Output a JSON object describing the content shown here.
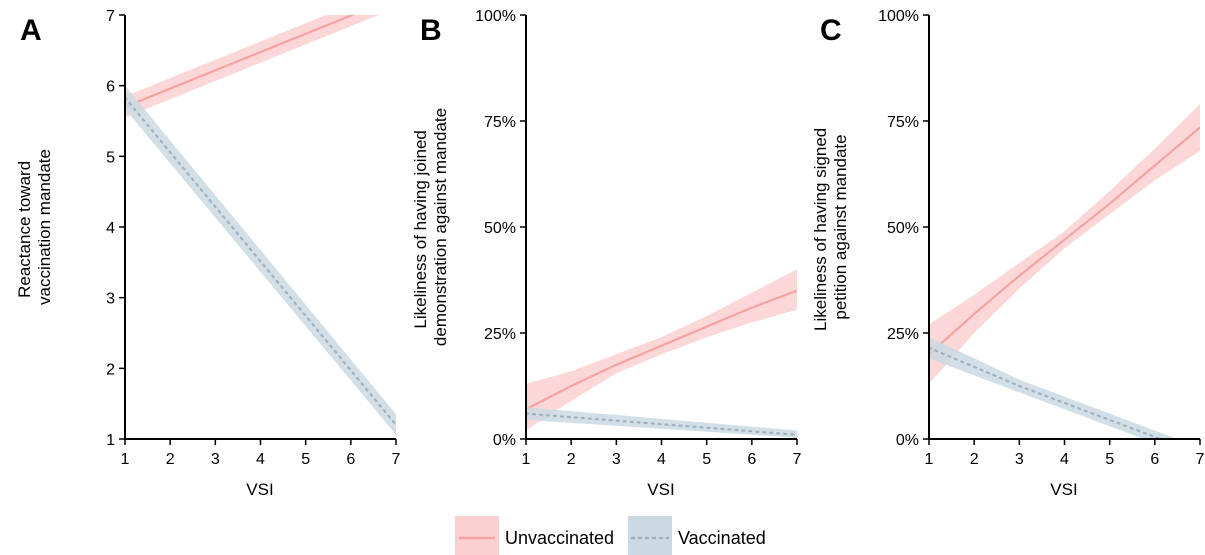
{
  "colors": {
    "unvaccinated_line": "#f4a3a3",
    "unvaccinated_band": "#fbd0d0",
    "vaccinated_line": "#9fb1bf",
    "vaccinated_band": "#cbd9e2",
    "axis": "#000000"
  },
  "legend": {
    "placement": "bottom-center",
    "items": [
      {
        "key": "unvaccinated",
        "label": "Unvaccinated",
        "line_style": "solid"
      },
      {
        "key": "vaccinated",
        "label": "Vaccinated",
        "line_style": "dotted"
      }
    ]
  },
  "chart_data": [
    {
      "panel": "A",
      "type": "line",
      "xlabel": "VSI",
      "ylabel": [
        "Reactance toward",
        "vaccination mandate"
      ],
      "xlim": [
        1,
        7
      ],
      "ylim": [
        1,
        7
      ],
      "x_ticks": [
        1,
        2,
        3,
        4,
        5,
        6,
        7
      ],
      "y_ticks": [
        {
          "value": 1,
          "label": "1"
        },
        {
          "value": 2,
          "label": "2"
        },
        {
          "value": 3,
          "label": "3"
        },
        {
          "value": 4,
          "label": "4"
        },
        {
          "value": 5,
          "label": "5"
        },
        {
          "value": 6,
          "label": "6"
        },
        {
          "value": 7,
          "label": "7"
        }
      ],
      "series": [
        {
          "name": "Unvaccinated",
          "key": "unvaccinated",
          "x": [
            1,
            7
          ],
          "y": [
            5.7,
            7.25
          ],
          "lower": [
            5.55,
            7.1
          ],
          "upper": [
            5.85,
            7.4
          ]
        },
        {
          "name": "Vaccinated",
          "key": "vaccinated",
          "x": [
            1,
            7
          ],
          "y": [
            5.83,
            1.2
          ],
          "lower": [
            5.67,
            1.06
          ],
          "upper": [
            6.0,
            1.35
          ]
        }
      ]
    },
    {
      "panel": "B",
      "type": "line",
      "xlabel": "VSI",
      "ylabel": [
        "Likeliness of having joined",
        "demonstration against mandate"
      ],
      "xlim": [
        1,
        7
      ],
      "ylim": [
        0,
        100
      ],
      "x_ticks": [
        1,
        2,
        3,
        4,
        5,
        6,
        7
      ],
      "y_ticks": [
        {
          "value": 0,
          "label": "0%"
        },
        {
          "value": 25,
          "label": "25%"
        },
        {
          "value": 50,
          "label": "50%"
        },
        {
          "value": 75,
          "label": "75%"
        },
        {
          "value": 100,
          "label": "100%"
        }
      ],
      "series": [
        {
          "name": "Unvaccinated",
          "key": "unvaccinated",
          "x": [
            1,
            2,
            3,
            4,
            5,
            6,
            7
          ],
          "y": [
            7,
            12.5,
            17.5,
            22,
            26.5,
            31,
            35
          ],
          "lower": [
            2,
            9,
            15.5,
            20,
            24,
            27.5,
            30.5
          ],
          "upper": [
            13,
            16,
            20,
            24,
            29,
            34.5,
            40
          ]
        },
        {
          "name": "Vaccinated",
          "key": "vaccinated",
          "x": [
            1,
            7
          ],
          "y": [
            6,
            1
          ],
          "lower": [
            4.5,
            0.3
          ],
          "upper": [
            7.5,
            2
          ]
        }
      ]
    },
    {
      "panel": "C",
      "type": "line",
      "xlabel": "VSI",
      "ylabel": [
        "Likeliness of having signed",
        "petition against mandate"
      ],
      "xlim": [
        1,
        7
      ],
      "ylim": [
        0,
        100
      ],
      "x_ticks": [
        1,
        2,
        3,
        4,
        5,
        6,
        7
      ],
      "y_ticks": [
        {
          "value": 0,
          "label": "0%"
        },
        {
          "value": 25,
          "label": "25%"
        },
        {
          "value": 50,
          "label": "50%"
        },
        {
          "value": 75,
          "label": "75%"
        },
        {
          "value": 100,
          "label": "100%"
        }
      ],
      "series": [
        {
          "name": "Unvaccinated",
          "key": "unvaccinated",
          "x": [
            1,
            2,
            3,
            4,
            5,
            6,
            7
          ],
          "y": [
            20,
            29.5,
            38.5,
            47,
            55.5,
            64.5,
            73.5
          ],
          "lower": [
            13,
            25,
            35.5,
            45,
            53,
            61,
            68
          ],
          "upper": [
            27,
            34,
            41.5,
            49,
            58.5,
            68.5,
            79
          ]
        },
        {
          "name": "Vaccinated",
          "key": "vaccinated",
          "x": [
            1,
            2,
            3,
            4,
            5,
            6,
            7
          ],
          "y": [
            21.5,
            17,
            12.5,
            8.5,
            4.5,
            0.5,
            -3.5
          ],
          "lower": [
            19,
            15,
            11,
            7,
            3,
            -1,
            -5
          ],
          "upper": [
            24,
            19,
            14,
            10,
            6,
            2,
            -2
          ]
        }
      ]
    }
  ]
}
